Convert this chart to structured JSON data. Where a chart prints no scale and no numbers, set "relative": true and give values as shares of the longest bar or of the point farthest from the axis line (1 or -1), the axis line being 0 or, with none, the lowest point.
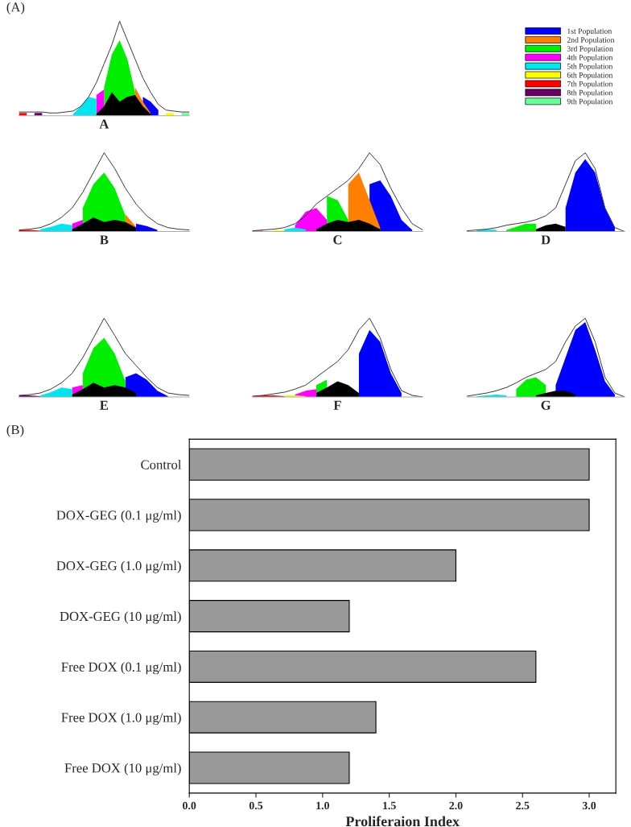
{
  "chart_data": [
    {
      "type": "area",
      "relative": true,
      "xlabel": "A",
      "annotations": [
        "(A)"
      ],
      "legend": "right",
      "categories": [
        null,
        null,
        null,
        null,
        null,
        null,
        null,
        null,
        null,
        null,
        null,
        null,
        null,
        null,
        null,
        null,
        null,
        null,
        null,
        null,
        null,
        null,
        null
      ],
      "series": [
        {
          "name": "1st Population",
          "color": "#0000ff",
          "values": [
            null,
            null,
            null,
            null,
            null,
            null,
            null,
            null,
            null,
            null,
            null,
            null,
            null,
            null,
            null,
            null,
            0.2,
            0.15,
            0.06,
            null,
            null,
            null,
            null
          ]
        },
        {
          "name": "2nd Population",
          "color": "#ff7f00",
          "values": [
            null,
            null,
            null,
            null,
            null,
            null,
            null,
            null,
            null,
            null,
            null,
            null,
            null,
            null,
            null,
            0.3,
            0.15,
            0.03,
            null,
            null,
            null,
            null,
            null
          ]
        },
        {
          "name": "3rd Population",
          "color": "#00ee00",
          "values": [
            null,
            null,
            null,
            null,
            null,
            null,
            null,
            null,
            null,
            null,
            null,
            0.3,
            0.65,
            0.8,
            0.6,
            0.25,
            null,
            null,
            null,
            null,
            null,
            null,
            null
          ]
        },
        {
          "name": "4th Population",
          "color": "#ff00ff",
          "values": [
            null,
            null,
            null,
            null,
            null,
            null,
            null,
            null,
            null,
            null,
            0.22,
            0.28,
            null,
            null,
            null,
            null,
            null,
            null,
            null,
            null,
            null,
            null,
            null
          ]
        },
        {
          "name": "5th Population",
          "color": "#00e5ee",
          "values": [
            null,
            null,
            null,
            null,
            null,
            null,
            null,
            0.02,
            0.1,
            0.2,
            0.18,
            null,
            null,
            null,
            null,
            null,
            null,
            null,
            null,
            null,
            null,
            null,
            null
          ]
        },
        {
          "name": "6th Population",
          "color": "#ffff00",
          "values": [
            null,
            null,
            null,
            null,
            null,
            null,
            null,
            null,
            null,
            null,
            null,
            null,
            null,
            null,
            null,
            null,
            null,
            null,
            null,
            0.03,
            0.03,
            null,
            null
          ]
        },
        {
          "name": "7th Population",
          "color": "#ff0000",
          "values": [
            0.03,
            0.03,
            null,
            null,
            null,
            null,
            null,
            null,
            null,
            null,
            null,
            null,
            null,
            null,
            null,
            null,
            null,
            null,
            null,
            null,
            null,
            null,
            null
          ]
        },
        {
          "name": "8th Population",
          "color": "#660066",
          "values": [
            null,
            null,
            0.03,
            0.03,
            null,
            null,
            null,
            null,
            null,
            null,
            null,
            null,
            null,
            null,
            null,
            null,
            null,
            null,
            null,
            null,
            null,
            null,
            null
          ]
        },
        {
          "name": "9th Population",
          "color": "#66ff99",
          "values": [
            null,
            null,
            null,
            null,
            null,
            null,
            null,
            null,
            null,
            null,
            null,
            null,
            null,
            null,
            null,
            null,
            null,
            null,
            null,
            null,
            null,
            0.03,
            0.03
          ]
        },
        {
          "color": "#000000",
          "values": [
            null,
            null,
            null,
            null,
            null,
            null,
            null,
            null,
            null,
            null,
            0.02,
            0.1,
            0.25,
            0.15,
            0.2,
            0.22,
            0.1,
            0.02,
            null,
            null,
            null,
            null,
            null
          ]
        },
        {
          "type": "line",
          "color": "#333333",
          "values": [
            0.04,
            0.04,
            0.04,
            0.04,
            0.03,
            0.03,
            0.04,
            0.05,
            0.1,
            0.2,
            0.35,
            0.55,
            0.75,
            1.0,
            0.8,
            0.6,
            0.4,
            0.25,
            0.12,
            0.06,
            0.05,
            0.04,
            0.04
          ]
        }
      ]
    },
    {
      "type": "area",
      "relative": true,
      "xlabel": "B",
      "categories": [
        null,
        null,
        null,
        null,
        null,
        null,
        null,
        null,
        null,
        null,
        null,
        null,
        null,
        null,
        null,
        null,
        null
      ],
      "series": [
        {
          "color": "#0000ff",
          "values": [
            null,
            null,
            null,
            null,
            null,
            null,
            null,
            null,
            null,
            null,
            null,
            0.1,
            0.07,
            0.02,
            null,
            null,
            null
          ]
        },
        {
          "color": "#ff7f00",
          "values": [
            null,
            null,
            null,
            null,
            null,
            null,
            null,
            null,
            null,
            null,
            0.22,
            0.06,
            null,
            null,
            null,
            null,
            null
          ]
        },
        {
          "color": "#00ee00",
          "values": [
            null,
            null,
            null,
            null,
            null,
            null,
            0.3,
            0.6,
            0.75,
            0.55,
            0.2,
            null,
            null,
            null,
            null,
            null,
            null
          ]
        },
        {
          "color": "#ff00ff",
          "values": [
            null,
            null,
            null,
            null,
            null,
            0.1,
            0.15,
            null,
            null,
            null,
            null,
            null,
            null,
            null,
            null,
            null,
            null
          ]
        },
        {
          "color": "#00e5ee",
          "values": [
            null,
            null,
            0.03,
            0.06,
            0.1,
            0.08,
            null,
            null,
            null,
            null,
            null,
            null,
            null,
            null,
            null,
            null,
            null
          ]
        },
        {
          "color": "#ff0000",
          "values": [
            0.02,
            0.02,
            0.01,
            null,
            null,
            null,
            null,
            null,
            null,
            null,
            null,
            null,
            null,
            null,
            null,
            null,
            null
          ]
        },
        {
          "color": "#000000",
          "values": [
            null,
            null,
            null,
            null,
            null,
            0.03,
            0.1,
            0.18,
            0.12,
            0.15,
            0.12,
            0.05,
            null,
            null,
            null,
            null,
            null
          ]
        },
        {
          "type": "line",
          "color": "#333333",
          "values": [
            0.02,
            0.03,
            0.05,
            0.1,
            0.18,
            0.3,
            0.5,
            0.75,
            1.0,
            0.8,
            0.55,
            0.35,
            0.2,
            0.1,
            0.05,
            0.03,
            0.02
          ]
        }
      ]
    },
    {
      "type": "area",
      "relative": true,
      "xlabel": "C",
      "categories": [
        null,
        null,
        null,
        null,
        null,
        null,
        null,
        null,
        null,
        null,
        null,
        null,
        null,
        null,
        null,
        null,
        null
      ],
      "series": [
        {
          "color": "#0000ff",
          "values": [
            null,
            null,
            null,
            null,
            null,
            null,
            null,
            null,
            null,
            null,
            null,
            0.6,
            0.65,
            0.45,
            0.15,
            0.02,
            null
          ]
        },
        {
          "color": "#ff7f00",
          "values": [
            null,
            null,
            null,
            null,
            null,
            null,
            null,
            null,
            null,
            0.6,
            0.75,
            0.4,
            0.05,
            null,
            null,
            null,
            null
          ]
        },
        {
          "color": "#00ee00",
          "values": [
            null,
            null,
            null,
            null,
            null,
            null,
            null,
            0.45,
            0.4,
            0.15,
            null,
            null,
            null,
            null,
            null,
            null,
            null
          ]
        },
        {
          "color": "#ff00ff",
          "values": [
            null,
            null,
            null,
            null,
            0.08,
            0.25,
            0.3,
            0.15,
            null,
            null,
            null,
            null,
            null,
            null,
            null,
            null,
            null
          ]
        },
        {
          "color": "#00e5ee",
          "values": [
            null,
            null,
            null,
            0.03,
            0.05,
            0.03,
            null,
            null,
            null,
            null,
            null,
            null,
            null,
            null,
            null,
            null,
            null
          ]
        },
        {
          "color": "#ffff00",
          "values": [
            null,
            null,
            0.02,
            0.01,
            null,
            null,
            null,
            null,
            null,
            null,
            null,
            null,
            null,
            null,
            null,
            null,
            null
          ]
        },
        {
          "color": "#ff0000",
          "values": [
            0.01,
            0.01,
            null,
            null,
            null,
            null,
            null,
            null,
            null,
            null,
            null,
            null,
            null,
            null,
            null,
            null,
            null
          ]
        },
        {
          "color": "#000000",
          "values": [
            null,
            null,
            null,
            null,
            null,
            null,
            0.03,
            0.1,
            0.15,
            0.12,
            0.15,
            0.1,
            0.03,
            null,
            null,
            null,
            null
          ]
        },
        {
          "type": "line",
          "color": "#333333",
          "values": [
            0.01,
            0.02,
            0.03,
            0.05,
            0.1,
            0.2,
            0.35,
            0.45,
            0.55,
            0.65,
            0.8,
            1.0,
            0.85,
            0.55,
            0.3,
            0.1,
            0.02
          ]
        }
      ]
    },
    {
      "type": "area",
      "relative": true,
      "xlabel": "D",
      "categories": [
        null,
        null,
        null,
        null,
        null,
        null,
        null,
        null,
        null,
        null,
        null,
        null,
        null,
        null,
        null,
        null,
        null
      ],
      "series": [
        {
          "color": "#0000ff",
          "values": [
            null,
            null,
            null,
            null,
            null,
            null,
            null,
            null,
            null,
            null,
            0.3,
            0.75,
            0.92,
            0.75,
            0.3,
            0.05,
            null
          ]
        },
        {
          "color": "#00ee00",
          "values": [
            null,
            null,
            null,
            null,
            0.02,
            0.06,
            0.1,
            0.1,
            null,
            null,
            null,
            null,
            null,
            null,
            null,
            null,
            null
          ]
        },
        {
          "color": "#00e5ee",
          "values": [
            null,
            0.02,
            0.03,
            0.02,
            null,
            null,
            null,
            null,
            null,
            null,
            null,
            null,
            null,
            null,
            null,
            null,
            null
          ]
        },
        {
          "color": "#000000",
          "values": [
            null,
            null,
            null,
            null,
            null,
            null,
            null,
            0.03,
            0.08,
            0.1,
            0.06,
            null,
            null,
            null,
            null,
            null,
            null
          ]
        },
        {
          "type": "line",
          "color": "#333333",
          "values": [
            0.01,
            0.02,
            0.03,
            0.05,
            0.08,
            0.1,
            0.12,
            0.15,
            0.2,
            0.3,
            0.6,
            0.9,
            1.0,
            0.8,
            0.3,
            0.05,
            0
          ]
        }
      ]
    },
    {
      "type": "area",
      "relative": true,
      "xlabel": "E",
      "categories": [
        null,
        null,
        null,
        null,
        null,
        null,
        null,
        null,
        null,
        null,
        null,
        null,
        null,
        null,
        null,
        null,
        null
      ],
      "series": [
        {
          "color": "#0000ff",
          "values": [
            null,
            null,
            null,
            null,
            null,
            null,
            null,
            null,
            null,
            null,
            0.25,
            0.3,
            0.22,
            0.08,
            0.01,
            null,
            null
          ]
        },
        {
          "color": "#00ee00",
          "values": [
            null,
            null,
            null,
            null,
            null,
            null,
            0.3,
            0.62,
            0.75,
            0.55,
            0.2,
            null,
            null,
            null,
            null,
            null,
            null
          ]
        },
        {
          "color": "#ff00ff",
          "values": [
            null,
            null,
            null,
            null,
            null,
            0.12,
            0.15,
            null,
            null,
            null,
            null,
            null,
            null,
            null,
            null,
            null,
            null
          ]
        },
        {
          "color": "#00e5ee",
          "values": [
            null,
            null,
            0.02,
            0.06,
            0.12,
            0.1,
            null,
            null,
            null,
            null,
            null,
            null,
            null,
            null,
            null,
            null,
            null
          ]
        },
        {
          "color": "#660066",
          "values": [
            0.02,
            0.02,
            0.01,
            null,
            null,
            null,
            null,
            null,
            null,
            null,
            null,
            null,
            null,
            null,
            null,
            null,
            null
          ]
        },
        {
          "color": "#000000",
          "values": [
            null,
            null,
            null,
            null,
            null,
            0.03,
            0.1,
            0.18,
            0.12,
            0.15,
            0.12,
            0.05,
            null,
            null,
            null,
            null,
            null
          ]
        },
        {
          "type": "line",
          "color": "#333333",
          "values": [
            0.02,
            0.03,
            0.05,
            0.1,
            0.18,
            0.3,
            0.5,
            0.75,
            1.0,
            0.78,
            0.55,
            0.4,
            0.25,
            0.12,
            0.05,
            0.03,
            0.02
          ]
        }
      ]
    },
    {
      "type": "area",
      "relative": true,
      "xlabel": "F",
      "categories": [
        null,
        null,
        null,
        null,
        null,
        null,
        null,
        null,
        null,
        null,
        null,
        null,
        null,
        null,
        null,
        null,
        null
      ],
      "series": [
        {
          "color": "#0000ff",
          "values": [
            null,
            null,
            null,
            null,
            null,
            null,
            null,
            null,
            null,
            null,
            0.55,
            0.85,
            0.7,
            0.3,
            0.05,
            null,
            null
          ]
        },
        {
          "color": "#00ee00",
          "values": [
            null,
            null,
            null,
            null,
            null,
            null,
            0.15,
            0.22,
            null,
            null,
            null,
            null,
            null,
            null,
            null,
            null,
            null
          ]
        },
        {
          "color": "#ff00ff",
          "values": [
            null,
            null,
            null,
            null,
            0.03,
            0.08,
            0.1,
            null,
            null,
            null,
            null,
            null,
            null,
            null,
            null,
            null,
            null
          ]
        },
        {
          "color": "#ffff00",
          "values": [
            null,
            null,
            null,
            0.02,
            0.02,
            0.01,
            null,
            null,
            null,
            null,
            null,
            null,
            null,
            null,
            null,
            null,
            null
          ]
        },
        {
          "color": "#ff0000",
          "values": [
            0.01,
            0.02,
            0.02,
            0.01,
            null,
            null,
            null,
            null,
            null,
            null,
            null,
            null,
            null,
            null,
            null,
            null,
            null
          ]
        },
        {
          "color": "#000000",
          "values": [
            null,
            null,
            null,
            null,
            null,
            null,
            0.05,
            0.12,
            0.2,
            0.15,
            0.05,
            null,
            null,
            null,
            null,
            null,
            null
          ]
        },
        {
          "type": "line",
          "color": "#333333",
          "values": [
            0.01,
            0.02,
            0.04,
            0.06,
            0.1,
            0.15,
            0.25,
            0.35,
            0.45,
            0.6,
            0.85,
            1.0,
            0.75,
            0.35,
            0.08,
            0.02,
            0
          ]
        }
      ]
    },
    {
      "type": "area",
      "relative": true,
      "xlabel": "G",
      "categories": [
        null,
        null,
        null,
        null,
        null,
        null,
        null,
        null,
        null,
        null,
        null,
        null,
        null,
        null,
        null,
        null,
        null
      ],
      "series": [
        {
          "color": "#0000ff",
          "values": [
            null,
            null,
            null,
            null,
            null,
            null,
            null,
            null,
            null,
            0.15,
            0.5,
            0.85,
            0.95,
            0.6,
            0.2,
            0.03,
            null
          ]
        },
        {
          "color": "#00ee00",
          "values": [
            null,
            null,
            null,
            null,
            null,
            0.1,
            0.22,
            0.25,
            0.15,
            null,
            null,
            null,
            null,
            null,
            null,
            null,
            null
          ]
        },
        {
          "color": "#00e5ee",
          "values": [
            null,
            0.01,
            0.02,
            0.03,
            0.02,
            null,
            null,
            null,
            null,
            null,
            null,
            null,
            null,
            null,
            null,
            null,
            null
          ]
        },
        {
          "color": "#000000",
          "values": [
            null,
            null,
            null,
            null,
            null,
            null,
            null,
            0.02,
            0.05,
            0.08,
            0.08,
            0.03,
            null,
            null,
            null,
            null,
            null
          ]
        },
        {
          "type": "line",
          "color": "#333333",
          "values": [
            0.01,
            0.03,
            0.05,
            0.08,
            0.12,
            0.18,
            0.25,
            0.3,
            0.35,
            0.45,
            0.7,
            0.9,
            1.0,
            0.7,
            0.25,
            0.05,
            0
          ]
        }
      ]
    },
    {
      "type": "bar",
      "orientation": "horizontal",
      "annotations": [
        "(B)"
      ],
      "xlabel": "Proliferaion Index",
      "categories": [
        "Control",
        "DOX-GEG (0.1 μg/ml)",
        "DOX-GEG (1.0 μg/ml)",
        "DOX-GEG (10 μg/ml)",
        "Free DOX (0.1 μg/ml)",
        "Free DOX (1.0 μg/ml)",
        "Free DOX (10 μg/ml)"
      ],
      "values": [
        3.0,
        3.0,
        2.0,
        1.2,
        2.6,
        1.4,
        1.2
      ],
      "color": "#999999",
      "xlim": [
        0,
        3.2
      ],
      "xticks": [
        {
          "value": 0,
          "label": "0.0"
        },
        {
          "value": 0.5,
          "label": "0.5"
        },
        {
          "value": 1,
          "label": "1.0"
        },
        {
          "value": 1.5,
          "label": "1.5"
        },
        {
          "value": 2,
          "label": "2.0"
        },
        {
          "value": 2.5,
          "label": "2.5"
        },
        {
          "value": 3,
          "label": "3.0"
        }
      ]
    }
  ]
}
